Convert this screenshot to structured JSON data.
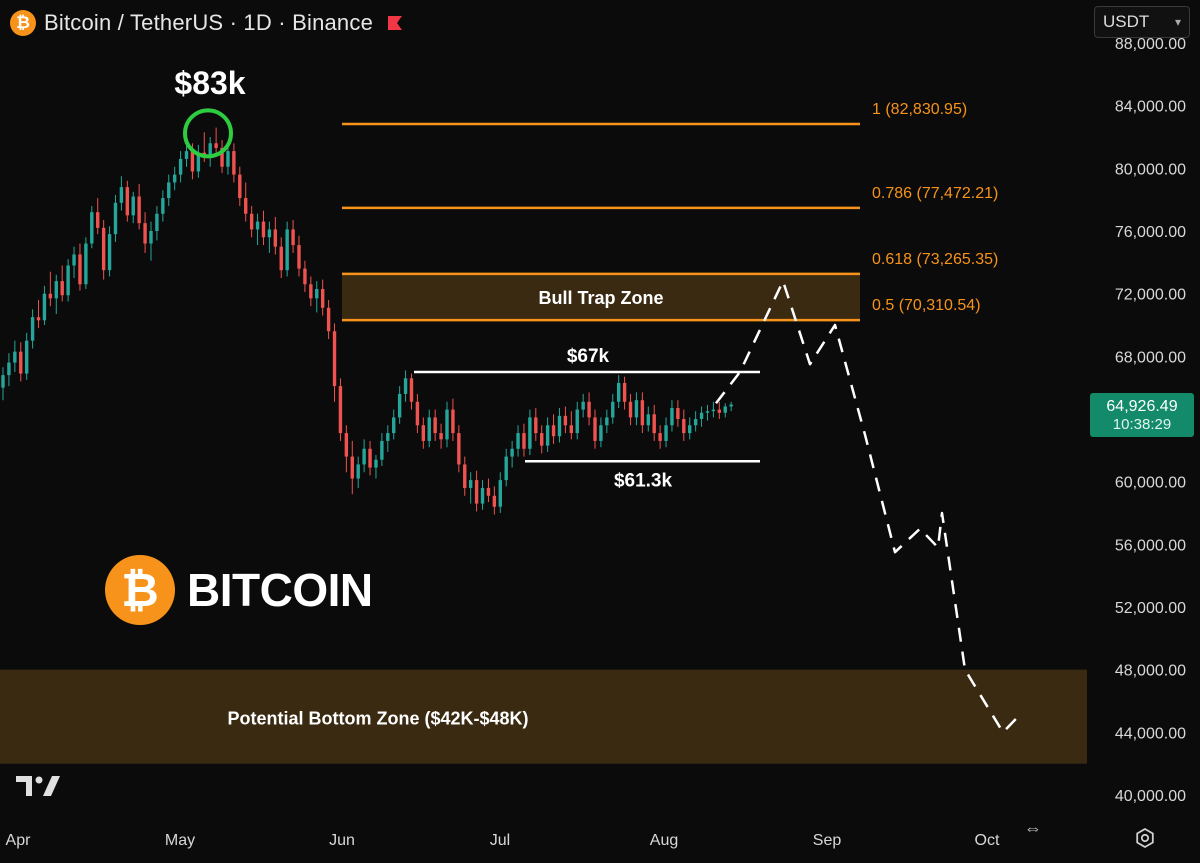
{
  "header": {
    "title": "Bitcoin / TetherUS · 1D · Binance",
    "currency": "USDT"
  },
  "brand": {
    "logo_glyph": "₿",
    "text": "BITCOIN"
  },
  "current_price": {
    "price": "64,926.49",
    "countdown": "10:38:29"
  },
  "chart_data": {
    "type": "candlestick",
    "x_labels": [
      "Apr",
      "May",
      "Jun",
      "Jul",
      "Aug",
      "Sep",
      "Oct"
    ],
    "y_ticks": [
      "40,000.00",
      "44,000.00",
      "48,000.00",
      "52,000.00",
      "56,000.00",
      "60,000.00",
      "64,000.00",
      "68,000.00",
      "72,000.00",
      "76,000.00",
      "80,000.00",
      "84,000.00",
      "88,000.00"
    ],
    "y_tick_values": [
      40000,
      44000,
      48000,
      52000,
      56000,
      60000,
      64000,
      68000,
      72000,
      76000,
      80000,
      84000,
      88000
    ],
    "ylim": [
      39000,
      88000
    ],
    "colors": {
      "up": "#26a69a",
      "down": "#ef5350",
      "fib": "#f7931a",
      "zone": "#3a2a12",
      "projection": "#ffffff",
      "circle": "#2ecc40"
    },
    "candles": [
      {
        "o": 66000,
        "h": 67300,
        "l": 65200,
        "c": 66800
      },
      {
        "o": 66800,
        "h": 68200,
        "l": 66100,
        "c": 67600
      },
      {
        "o": 67600,
        "h": 69000,
        "l": 67000,
        "c": 68300
      },
      {
        "o": 68300,
        "h": 68900,
        "l": 66400,
        "c": 66900
      },
      {
        "o": 66900,
        "h": 69500,
        "l": 66500,
        "c": 69000
      },
      {
        "o": 69000,
        "h": 71000,
        "l": 68500,
        "c": 70500
      },
      {
        "o": 70500,
        "h": 71600,
        "l": 69800,
        "c": 70300
      },
      {
        "o": 70300,
        "h": 72500,
        "l": 70000,
        "c": 72000
      },
      {
        "o": 72000,
        "h": 73400,
        "l": 71200,
        "c": 71700
      },
      {
        "o": 71700,
        "h": 73200,
        "l": 70700,
        "c": 72800
      },
      {
        "o": 72800,
        "h": 73800,
        "l": 71500,
        "c": 71900
      },
      {
        "o": 71900,
        "h": 74200,
        "l": 71500,
        "c": 73800
      },
      {
        "o": 73800,
        "h": 75000,
        "l": 73000,
        "c": 74500
      },
      {
        "o": 74500,
        "h": 75200,
        "l": 72200,
        "c": 72600
      },
      {
        "o": 72600,
        "h": 75600,
        "l": 72300,
        "c": 75200
      },
      {
        "o": 75200,
        "h": 77600,
        "l": 74900,
        "c": 77200
      },
      {
        "o": 77200,
        "h": 78100,
        "l": 75800,
        "c": 76200
      },
      {
        "o": 76200,
        "h": 76700,
        "l": 72900,
        "c": 73500
      },
      {
        "o": 73500,
        "h": 76300,
        "l": 73100,
        "c": 75800
      },
      {
        "o": 75800,
        "h": 78300,
        "l": 75300,
        "c": 77800
      },
      {
        "o": 77800,
        "h": 79500,
        "l": 77300,
        "c": 78800
      },
      {
        "o": 78800,
        "h": 79200,
        "l": 76600,
        "c": 77000
      },
      {
        "o": 77000,
        "h": 78500,
        "l": 76500,
        "c": 78200
      },
      {
        "o": 78200,
        "h": 79000,
        "l": 76100,
        "c": 76500
      },
      {
        "o": 76500,
        "h": 77200,
        "l": 74600,
        "c": 75200
      },
      {
        "o": 75200,
        "h": 76600,
        "l": 74100,
        "c": 76000
      },
      {
        "o": 76000,
        "h": 77600,
        "l": 75400,
        "c": 77100
      },
      {
        "o": 77100,
        "h": 78600,
        "l": 76600,
        "c": 78100
      },
      {
        "o": 78100,
        "h": 79600,
        "l": 77600,
        "c": 79100
      },
      {
        "o": 79100,
        "h": 80100,
        "l": 78600,
        "c": 79600
      },
      {
        "o": 79600,
        "h": 81100,
        "l": 79100,
        "c": 80600
      },
      {
        "o": 80600,
        "h": 82800,
        "l": 80100,
        "c": 81100
      },
      {
        "o": 81100,
        "h": 81600,
        "l": 79300,
        "c": 79800
      },
      {
        "o": 79800,
        "h": 81500,
        "l": 79400,
        "c": 81000
      },
      {
        "o": 81000,
        "h": 82300,
        "l": 80400,
        "c": 80800
      },
      {
        "o": 80800,
        "h": 82000,
        "l": 80100,
        "c": 81600
      },
      {
        "o": 81600,
        "h": 82600,
        "l": 81000,
        "c": 81300
      },
      {
        "o": 81300,
        "h": 81800,
        "l": 79700,
        "c": 80100
      },
      {
        "o": 80100,
        "h": 81600,
        "l": 79600,
        "c": 81100
      },
      {
        "o": 81100,
        "h": 81600,
        "l": 79100,
        "c": 79600
      },
      {
        "o": 79600,
        "h": 80100,
        "l": 77600,
        "c": 78100
      },
      {
        "o": 78100,
        "h": 79100,
        "l": 76600,
        "c": 77100
      },
      {
        "o": 77100,
        "h": 77600,
        "l": 75600,
        "c": 76100
      },
      {
        "o": 76100,
        "h": 77100,
        "l": 75100,
        "c": 76600
      },
      {
        "o": 76600,
        "h": 77300,
        "l": 75100,
        "c": 75600
      },
      {
        "o": 75600,
        "h": 76600,
        "l": 74600,
        "c": 76100
      },
      {
        "o": 76100,
        "h": 76900,
        "l": 74500,
        "c": 75000
      },
      {
        "o": 75000,
        "h": 75600,
        "l": 73000,
        "c": 73500
      },
      {
        "o": 73500,
        "h": 76600,
        "l": 73100,
        "c": 76100
      },
      {
        "o": 76100,
        "h": 76700,
        "l": 74600,
        "c": 75100
      },
      {
        "o": 75100,
        "h": 75700,
        "l": 73100,
        "c": 73600
      },
      {
        "o": 73600,
        "h": 74100,
        "l": 72100,
        "c": 72600
      },
      {
        "o": 72600,
        "h": 73100,
        "l": 71200,
        "c": 71700
      },
      {
        "o": 71700,
        "h": 72800,
        "l": 70800,
        "c": 72300
      },
      {
        "o": 72300,
        "h": 72900,
        "l": 70600,
        "c": 71100
      },
      {
        "o": 71100,
        "h": 71600,
        "l": 69100,
        "c": 69600
      },
      {
        "o": 69600,
        "h": 70100,
        "l": 65100,
        "c": 66100
      },
      {
        "o": 66100,
        "h": 66600,
        "l": 62600,
        "c": 63100
      },
      {
        "o": 63100,
        "h": 63600,
        "l": 60600,
        "c": 61600
      },
      {
        "o": 61600,
        "h": 62600,
        "l": 59200,
        "c": 60200
      },
      {
        "o": 60200,
        "h": 61600,
        "l": 59600,
        "c": 61100
      },
      {
        "o": 61100,
        "h": 62700,
        "l": 60600,
        "c": 62100
      },
      {
        "o": 62100,
        "h": 62600,
        "l": 60400,
        "c": 60900
      },
      {
        "o": 60900,
        "h": 61700,
        "l": 60200,
        "c": 61400
      },
      {
        "o": 61400,
        "h": 63100,
        "l": 61000,
        "c": 62600
      },
      {
        "o": 62600,
        "h": 63600,
        "l": 61900,
        "c": 63100
      },
      {
        "o": 63100,
        "h": 64600,
        "l": 62700,
        "c": 64100
      },
      {
        "o": 64100,
        "h": 66100,
        "l": 63700,
        "c": 65600
      },
      {
        "o": 65600,
        "h": 67100,
        "l": 65100,
        "c": 66600
      },
      {
        "o": 66600,
        "h": 66900,
        "l": 64600,
        "c": 65100
      },
      {
        "o": 65100,
        "h": 65600,
        "l": 63100,
        "c": 63600
      },
      {
        "o": 63600,
        "h": 64100,
        "l": 62100,
        "c": 62600
      },
      {
        "o": 62600,
        "h": 64600,
        "l": 62200,
        "c": 64100
      },
      {
        "o": 64100,
        "h": 64600,
        "l": 62600,
        "c": 63100
      },
      {
        "o": 63100,
        "h": 63700,
        "l": 62100,
        "c": 62700
      },
      {
        "o": 62700,
        "h": 65100,
        "l": 62200,
        "c": 64600
      },
      {
        "o": 64600,
        "h": 65300,
        "l": 62600,
        "c": 63100
      },
      {
        "o": 63100,
        "h": 63600,
        "l": 60600,
        "c": 61100
      },
      {
        "o": 61100,
        "h": 61600,
        "l": 59100,
        "c": 59600
      },
      {
        "o": 59600,
        "h": 60600,
        "l": 58600,
        "c": 60100
      },
      {
        "o": 60100,
        "h": 60700,
        "l": 58100,
        "c": 58600
      },
      {
        "o": 58600,
        "h": 60100,
        "l": 58200,
        "c": 59600
      },
      {
        "o": 59600,
        "h": 60200,
        "l": 58700,
        "c": 59100
      },
      {
        "o": 59100,
        "h": 59700,
        "l": 57900,
        "c": 58400
      },
      {
        "o": 58400,
        "h": 60600,
        "l": 58000,
        "c": 60100
      },
      {
        "o": 60100,
        "h": 62100,
        "l": 59700,
        "c": 61600
      },
      {
        "o": 61600,
        "h": 62600,
        "l": 60900,
        "c": 62100
      },
      {
        "o": 62100,
        "h": 63600,
        "l": 61600,
        "c": 63100
      },
      {
        "o": 63100,
        "h": 63700,
        "l": 61600,
        "c": 62100
      },
      {
        "o": 62100,
        "h": 64600,
        "l": 61700,
        "c": 64100
      },
      {
        "o": 64100,
        "h": 64700,
        "l": 62600,
        "c": 63100
      },
      {
        "o": 63100,
        "h": 63600,
        "l": 61800,
        "c": 62300
      },
      {
        "o": 62300,
        "h": 64100,
        "l": 61900,
        "c": 63600
      },
      {
        "o": 63600,
        "h": 64300,
        "l": 62400,
        "c": 62900
      },
      {
        "o": 62900,
        "h": 64700,
        "l": 62500,
        "c": 64200
      },
      {
        "o": 64200,
        "h": 64800,
        "l": 63100,
        "c": 63600
      },
      {
        "o": 63600,
        "h": 64500,
        "l": 62700,
        "c": 63100
      },
      {
        "o": 63100,
        "h": 65100,
        "l": 62700,
        "c": 64600
      },
      {
        "o": 64600,
        "h": 65600,
        "l": 64100,
        "c": 65100
      },
      {
        "o": 65100,
        "h": 65700,
        "l": 63600,
        "c": 64100
      },
      {
        "o": 64100,
        "h": 64600,
        "l": 62100,
        "c": 62600
      },
      {
        "o": 62600,
        "h": 64100,
        "l": 62200,
        "c": 63600
      },
      {
        "o": 63600,
        "h": 64600,
        "l": 63100,
        "c": 64100
      },
      {
        "o": 64100,
        "h": 65600,
        "l": 63700,
        "c": 65100
      },
      {
        "o": 65100,
        "h": 66800,
        "l": 64700,
        "c": 66300
      },
      {
        "o": 66300,
        "h": 66700,
        "l": 64600,
        "c": 65100
      },
      {
        "o": 65100,
        "h": 65600,
        "l": 63600,
        "c": 64100
      },
      {
        "o": 64100,
        "h": 65700,
        "l": 63600,
        "c": 65200
      },
      {
        "o": 65200,
        "h": 65700,
        "l": 63100,
        "c": 63600
      },
      {
        "o": 63600,
        "h": 64800,
        "l": 63200,
        "c": 64300
      },
      {
        "o": 64300,
        "h": 64900,
        "l": 62600,
        "c": 63100
      },
      {
        "o": 63100,
        "h": 63600,
        "l": 62100,
        "c": 62600
      },
      {
        "o": 62600,
        "h": 64100,
        "l": 62200,
        "c": 63600
      },
      {
        "o": 63600,
        "h": 65200,
        "l": 63200,
        "c": 64700
      },
      {
        "o": 64700,
        "h": 65200,
        "l": 63500,
        "c": 64000
      },
      {
        "o": 64000,
        "h": 64600,
        "l": 62600,
        "c": 63100
      },
      {
        "o": 63100,
        "h": 64100,
        "l": 62700,
        "c": 63600
      },
      {
        "o": 63600,
        "h": 64500,
        "l": 63200,
        "c": 64000
      },
      {
        "o": 64000,
        "h": 64800,
        "l": 63500,
        "c": 64400
      },
      {
        "o": 64400,
        "h": 64900,
        "l": 63900,
        "c": 64500
      },
      {
        "o": 64500,
        "h": 65100,
        "l": 64100,
        "c": 64600
      },
      {
        "o": 64600,
        "h": 65100,
        "l": 64000,
        "c": 64400
      },
      {
        "o": 64400,
        "h": 65000,
        "l": 64100,
        "c": 64800
      },
      {
        "o": 64800,
        "h": 65100,
        "l": 64500,
        "c": 64926
      }
    ],
    "fib_levels": [
      {
        "label": "1 (82,830.95)",
        "value": 82830.95
      },
      {
        "label": "0.786 (77,472.21)",
        "value": 77472.21
      },
      {
        "label": "0.618 (73,265.35)",
        "value": 73265.35
      },
      {
        "label": "0.5 (70,310.54)",
        "value": 70310.54
      }
    ],
    "zones": [
      {
        "label": "Bull Trap Zone",
        "from": 70310.54,
        "to": 73265.35
      },
      {
        "label": "Potential Bottom Zone ($42K-$48K)",
        "from": 42000,
        "to": 48000
      }
    ],
    "levels": [
      {
        "label": "$67k",
        "value": 67000
      },
      {
        "label": "$61.3k",
        "value": 61300
      }
    ],
    "peak_annotation": {
      "label": "$83k",
      "value": 83000
    },
    "projection": [
      65000,
      67000,
      72800,
      67500,
      70000,
      63000,
      55500,
      57000,
      55800,
      58000,
      48000,
      44000,
      45000
    ]
  }
}
